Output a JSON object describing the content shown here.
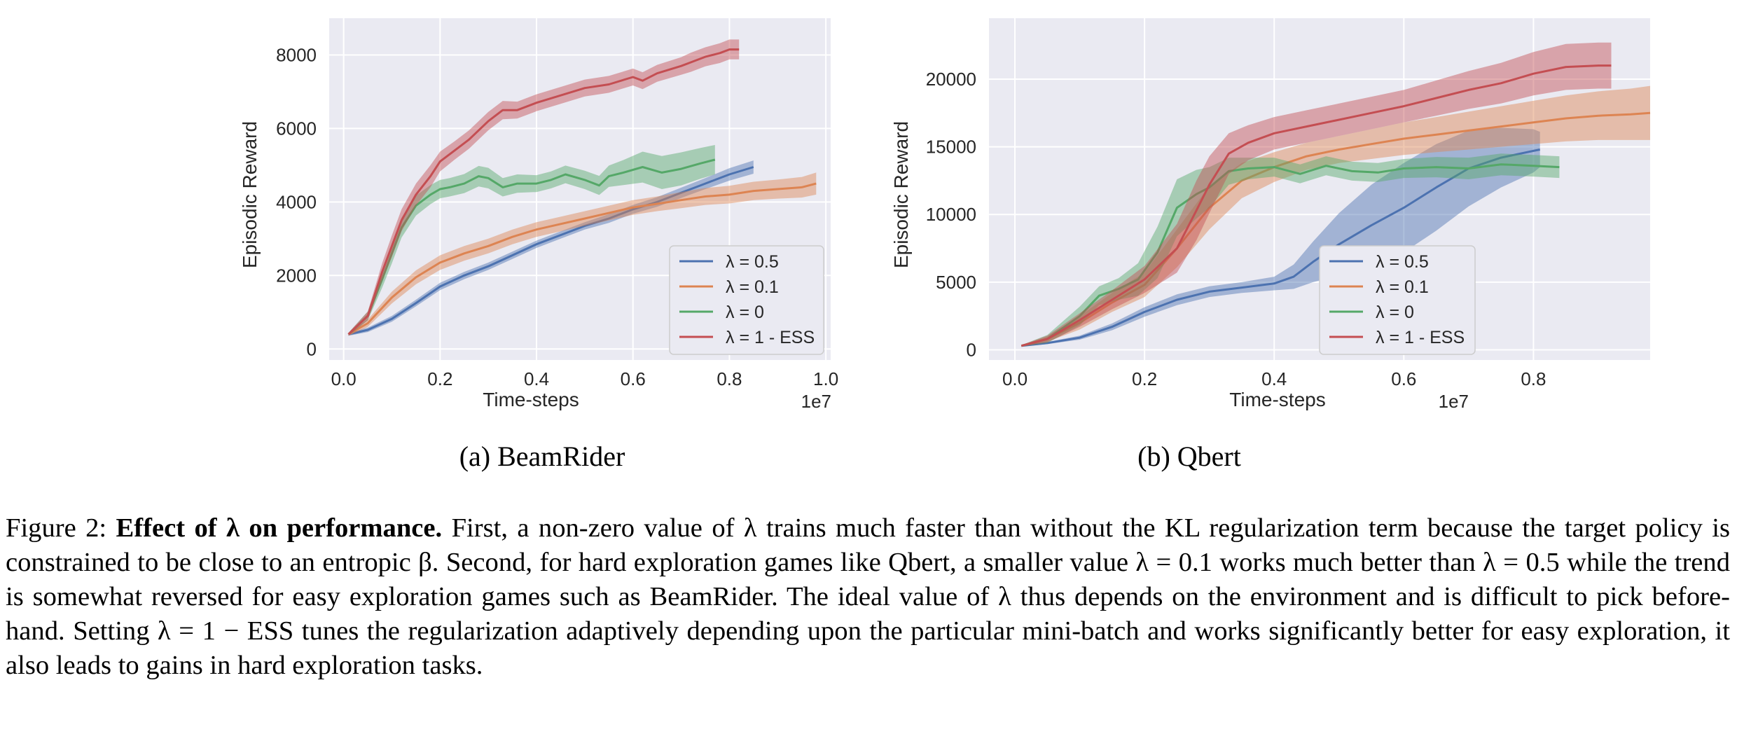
{
  "chart_data": [
    {
      "type": "line",
      "ylabel": "Episodic Reward",
      "xlabel": "Time-steps",
      "x_multiplier_label": "1e7",
      "xlim": [
        -0.03,
        1.01
      ],
      "ylim": [
        -300,
        9000
      ],
      "xticks": [
        "0.0",
        "0.2",
        "0.4",
        "0.6",
        "0.8",
        "1.0"
      ],
      "yticks": [
        "0",
        "2000",
        "4000",
        "6000",
        "8000"
      ],
      "grid": true,
      "legend_position": "lower-right",
      "series": [
        {
          "name": "λ = 0.5",
          "color": "#4c72b0",
          "x": [
            0.01,
            0.05,
            0.1,
            0.15,
            0.2,
            0.25,
            0.3,
            0.35,
            0.4,
            0.45,
            0.5,
            0.55,
            0.6,
            0.65,
            0.7,
            0.75,
            0.8,
            0.85
          ],
          "y": [
            400,
            520,
            820,
            1250,
            1700,
            2000,
            2250,
            2550,
            2850,
            3100,
            3350,
            3550,
            3800,
            4000,
            4250,
            4500,
            4750,
            4950
          ],
          "band": [
            40,
            60,
            80,
            90,
            100,
            100,
            100,
            100,
            100,
            100,
            100,
            120,
            120,
            130,
            140,
            150,
            170,
            180
          ]
        },
        {
          "name": "λ = 0.1",
          "color": "#dd8452",
          "x": [
            0.01,
            0.05,
            0.1,
            0.15,
            0.2,
            0.25,
            0.3,
            0.35,
            0.4,
            0.45,
            0.5,
            0.55,
            0.6,
            0.65,
            0.7,
            0.75,
            0.8,
            0.85,
            0.9,
            0.95,
            0.98
          ],
          "y": [
            400,
            700,
            1400,
            1950,
            2350,
            2600,
            2800,
            3050,
            3250,
            3400,
            3550,
            3700,
            3850,
            3950,
            4050,
            4150,
            4200,
            4300,
            4350,
            4400,
            4500
          ],
          "band": [
            40,
            100,
            160,
            190,
            200,
            200,
            200,
            200,
            200,
            200,
            200,
            200,
            200,
            200,
            220,
            230,
            240,
            250,
            260,
            280,
            300
          ]
        },
        {
          "name": "λ = 0",
          "color": "#55a868",
          "x": [
            0.01,
            0.05,
            0.08,
            0.1,
            0.12,
            0.15,
            0.18,
            0.2,
            0.22,
            0.25,
            0.28,
            0.3,
            0.33,
            0.36,
            0.4,
            0.43,
            0.46,
            0.5,
            0.53,
            0.55,
            0.58,
            0.62,
            0.66,
            0.7,
            0.74,
            0.77
          ],
          "y": [
            400,
            900,
            1900,
            2600,
            3300,
            3900,
            4200,
            4350,
            4400,
            4500,
            4700,
            4650,
            4400,
            4500,
            4500,
            4600,
            4750,
            4600,
            4450,
            4700,
            4800,
            4950,
            4800,
            4900,
            5050,
            5150
          ],
          "band": [
            40,
            120,
            230,
            270,
            270,
            270,
            260,
            250,
            250,
            260,
            280,
            280,
            250,
            250,
            230,
            230,
            240,
            250,
            260,
            290,
            340,
            420,
            450,
            450,
            420,
            400
          ]
        },
        {
          "name": "λ = 1 - ESS",
          "color": "#c44e52",
          "x": [
            0.01,
            0.05,
            0.08,
            0.1,
            0.12,
            0.15,
            0.18,
            0.2,
            0.23,
            0.26,
            0.3,
            0.33,
            0.36,
            0.4,
            0.45,
            0.5,
            0.55,
            0.6,
            0.62,
            0.65,
            0.7,
            0.72,
            0.75,
            0.78,
            0.8,
            0.82
          ],
          "y": [
            400,
            900,
            2100,
            2800,
            3500,
            4200,
            4700,
            5100,
            5400,
            5700,
            6200,
            6500,
            6500,
            6700,
            6900,
            7100,
            7200,
            7400,
            7300,
            7500,
            7700,
            7800,
            7950,
            8050,
            8150,
            8150
          ],
          "band": [
            40,
            120,
            240,
            290,
            300,
            300,
            300,
            270,
            250,
            250,
            250,
            250,
            230,
            230,
            230,
            230,
            230,
            230,
            230,
            230,
            240,
            260,
            260,
            270,
            270,
            270
          ]
        }
      ]
    },
    {
      "type": "line",
      "ylabel": "Episodic Reward",
      "xlabel": "Time-steps",
      "x_multiplier_label": "1e7",
      "xlim": [
        -0.04,
        0.98
      ],
      "ylim": [
        -750,
        24500
      ],
      "xticks": [
        "0.0",
        "0.2",
        "0.4",
        "0.6",
        "0.8"
      ],
      "yticks": [
        "0",
        "5000",
        "10000",
        "15000",
        "20000"
      ],
      "grid": true,
      "legend_position": "lower-right",
      "series": [
        {
          "name": "λ = 0.5",
          "color": "#4c72b0",
          "x": [
            0.01,
            0.05,
            0.1,
            0.15,
            0.2,
            0.25,
            0.3,
            0.35,
            0.4,
            0.43,
            0.46,
            0.5,
            0.55,
            0.6,
            0.65,
            0.7,
            0.75,
            0.8,
            0.81
          ],
          "y": [
            300,
            500,
            900,
            1700,
            2800,
            3700,
            4300,
            4600,
            4900,
            5400,
            6500,
            7800,
            9200,
            10500,
            12000,
            13400,
            14200,
            14700,
            14800
          ],
          "band": [
            50,
            80,
            150,
            250,
            350,
            400,
            400,
            400,
            500,
            900,
            1500,
            2300,
            3000,
            3300,
            3200,
            2800,
            2200,
            1600,
            1300
          ]
        },
        {
          "name": "λ = 0.1",
          "color": "#dd8452",
          "x": [
            0.01,
            0.05,
            0.1,
            0.15,
            0.2,
            0.25,
            0.3,
            0.35,
            0.4,
            0.45,
            0.5,
            0.55,
            0.6,
            0.65,
            0.7,
            0.75,
            0.8,
            0.85,
            0.9,
            0.95,
            0.98
          ],
          "y": [
            300,
            800,
            2000,
            3500,
            4800,
            7500,
            10500,
            12500,
            13500,
            14300,
            14800,
            15200,
            15600,
            15900,
            16200,
            16500,
            16800,
            17100,
            17300,
            17400,
            17500
          ],
          "band": [
            50,
            200,
            500,
            700,
            900,
            1400,
            1600,
            1300,
            1100,
            1000,
            1000,
            1100,
            1200,
            1300,
            1400,
            1500,
            1600,
            1700,
            1800,
            1900,
            2000
          ]
        },
        {
          "name": "λ = 0",
          "color": "#55a868",
          "x": [
            0.01,
            0.05,
            0.1,
            0.13,
            0.16,
            0.19,
            0.22,
            0.25,
            0.28,
            0.3,
            0.33,
            0.36,
            0.4,
            0.44,
            0.48,
            0.52,
            0.56,
            0.6,
            0.65,
            0.7,
            0.75,
            0.8,
            0.84
          ],
          "y": [
            300,
            800,
            2500,
            4000,
            4500,
            5200,
            7200,
            10500,
            11500,
            12000,
            13200,
            13400,
            13500,
            13000,
            13600,
            13200,
            13100,
            13400,
            13500,
            13400,
            13700,
            13600,
            13500
          ],
          "band": [
            50,
            300,
            700,
            700,
            800,
            1200,
            1900,
            2100,
            1800,
            1500,
            1000,
            800,
            700,
            700,
            700,
            700,
            700,
            700,
            750,
            800,
            800,
            800,
            800
          ]
        },
        {
          "name": "λ = 1 - ESS",
          "color": "#c44e52",
          "x": [
            0.01,
            0.05,
            0.1,
            0.15,
            0.2,
            0.25,
            0.28,
            0.3,
            0.33,
            0.36,
            0.4,
            0.45,
            0.5,
            0.55,
            0.6,
            0.65,
            0.7,
            0.75,
            0.8,
            0.85,
            0.9,
            0.92
          ],
          "y": [
            300,
            800,
            2200,
            3700,
            5200,
            7500,
            10300,
            12200,
            14500,
            15300,
            16000,
            16500,
            17000,
            17500,
            18000,
            18600,
            19200,
            19700,
            20400,
            20900,
            21000,
            21000
          ],
          "band": [
            50,
            250,
            500,
            700,
            1000,
            1800,
            2200,
            2100,
            1500,
            1300,
            1200,
            1200,
            1200,
            1200,
            1200,
            1300,
            1400,
            1500,
            1600,
            1700,
            1700,
            1700
          ]
        }
      ]
    }
  ],
  "subcaptions": {
    "a": "(a) BeamRider",
    "b": "(b) Qbert"
  },
  "caption": {
    "label": "Figure 2:",
    "bold_part": "Effect of λ on performance.",
    "text": "First, a non-zero value of λ trains much faster than without the KL regularization term because the target policy is constrained to be close to an entropic β. Second, for hard exploration games like Qbert, a smaller value λ = 0.1 works much better than λ = 0.5 while the trend is somewhat reversed for easy exploration games such as BeamRider. The ideal value of λ thus depends on the environment and is difficult to pick before-hand. Setting λ = 1 − ESS tunes the regularization adaptively depending upon the particular mini-batch and works significantly better for easy exploration, it also leads to gains in hard exploration tasks."
  }
}
